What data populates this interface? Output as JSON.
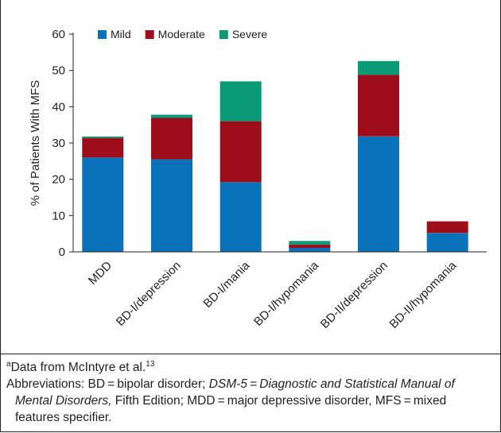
{
  "chart_data": {
    "type": "bar",
    "stacked": true,
    "title": "",
    "ylabel": "% of Patients With MFS",
    "xlabel": "",
    "ylim": [
      0,
      60
    ],
    "yticks": [
      0,
      10,
      20,
      30,
      40,
      50,
      60
    ],
    "grid": false,
    "legend_position": "top-left",
    "categories": [
      "MDD",
      "BD-I/depression",
      "BD-I/mania",
      "BD-I/hypomania",
      "BD-II/depression",
      "BD-II/hypomania"
    ],
    "series": [
      {
        "name": "Mild",
        "color": "#0a72bb",
        "values": [
          26,
          25.5,
          19.2,
          1.1,
          31.8,
          5.2
        ]
      },
      {
        "name": "Moderate",
        "color": "#9e0d1a",
        "values": [
          5.4,
          11.4,
          16.8,
          0.9,
          17.0,
          3.2
        ]
      },
      {
        "name": "Severe",
        "color": "#0a9a78",
        "values": [
          0.4,
          0.9,
          11.0,
          1.0,
          3.8,
          0
        ]
      }
    ]
  },
  "footnote": {
    "marker": "a",
    "source_text": "Data from McIntyre et al.",
    "source_ref": "13",
    "abbrev_prefix": "Abbreviations: BD = bipolar disorder; ",
    "abbrev_italic1": "DSM-5 = Diagnostic and Statistical Manual of Mental Disorders,",
    "abbrev_rest": " Fifth Edition; MDD = major depressive disorder, MFS = mixed features specifier."
  }
}
